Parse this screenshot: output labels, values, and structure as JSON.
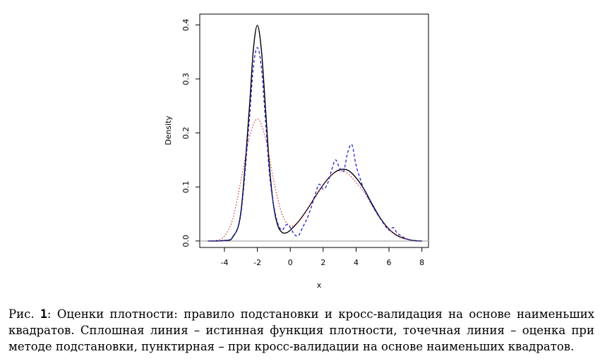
{
  "chart_data": {
    "type": "line",
    "xlabel": "x",
    "ylabel": "Density",
    "xlim": [
      -5.5,
      8.4
    ],
    "ylim": [
      -0.012,
      0.42
    ],
    "x_ticks": [
      "-4",
      "-2",
      "0",
      "2",
      "4",
      "6",
      "8"
    ],
    "y_ticks": [
      "0.0",
      "0.1",
      "0.2",
      "0.3",
      "0.4"
    ],
    "baseline": 0,
    "grid": false,
    "legend": "none",
    "series": [
      {
        "style": "solid",
        "color": "#000000",
        "x": [
          -5,
          -4,
          -3.5,
          -3,
          -2.5,
          -2.25,
          -2,
          -1.75,
          -1.5,
          -1.25,
          -1,
          -0.75,
          -0.5,
          -0.25,
          0,
          0.5,
          1,
          1.5,
          2,
          2.5,
          3,
          3.5,
          4,
          4.5,
          5,
          5.5,
          6,
          6.5,
          7,
          7.5,
          8
        ],
        "y": [
          0,
          0.001,
          0.007,
          0.054,
          0.24,
          0.352,
          0.399,
          0.352,
          0.243,
          0.133,
          0.062,
          0.028,
          0.016,
          0.015,
          0.02,
          0.036,
          0.057,
          0.081,
          0.104,
          0.122,
          0.132,
          0.131,
          0.117,
          0.095,
          0.067,
          0.041,
          0.022,
          0.01,
          0.004,
          0.001,
          0
        ]
      },
      {
        "style": "dotted",
        "color": "#cc2222",
        "x": [
          -5,
          -4.5,
          -4,
          -3.5,
          -3,
          -2.5,
          -2,
          -1.5,
          -1,
          -0.5,
          0,
          0.5,
          1,
          1.5,
          2,
          2.5,
          3,
          3.5,
          4,
          4.5,
          5,
          5.5,
          6,
          6.5,
          7,
          7.5,
          8
        ],
        "y": [
          0,
          0.001,
          0.009,
          0.04,
          0.111,
          0.19,
          0.226,
          0.19,
          0.111,
          0.05,
          0.028,
          0.036,
          0.057,
          0.081,
          0.104,
          0.122,
          0.13,
          0.125,
          0.108,
          0.09,
          0.064,
          0.04,
          0.022,
          0.011,
          0.004,
          0.001,
          0
        ]
      },
      {
        "style": "dashed",
        "color": "#2222cc",
        "x": [
          -5,
          -4,
          -3.5,
          -3,
          -2.5,
          -2.25,
          -2,
          -1.75,
          -1.5,
          -1.25,
          -1,
          -0.75,
          -0.5,
          -0.25,
          0,
          0.25,
          0.5,
          0.75,
          1,
          1.25,
          1.5,
          1.75,
          2,
          2.25,
          2.5,
          2.75,
          3,
          3.25,
          3.5,
          3.75,
          4,
          4.25,
          4.5,
          5,
          5.5,
          6,
          6.25,
          6.5,
          7,
          7.5,
          8
        ],
        "y": [
          0,
          0.001,
          0.008,
          0.05,
          0.22,
          0.32,
          0.358,
          0.32,
          0.22,
          0.12,
          0.065,
          0.032,
          0.02,
          0.03,
          0.025,
          0.012,
          0.01,
          0.025,
          0.04,
          0.06,
          0.085,
          0.105,
          0.096,
          0.105,
          0.13,
          0.15,
          0.135,
          0.13,
          0.165,
          0.178,
          0.14,
          0.115,
          0.095,
          0.065,
          0.04,
          0.02,
          0.025,
          0.015,
          0.005,
          0.001,
          0
        ]
      }
    ]
  },
  "caption": {
    "label": "Рис.",
    "number": "1",
    "text": ": Оценки плотности: правило подстановки и кросс-валидация на основе наименьших квадратов. Сплошная линия – истинная функция плотности, точечная линия – оценка при методе подстановки, пунктирная – при кросс-валидации на основе наименьших квадратов."
  }
}
